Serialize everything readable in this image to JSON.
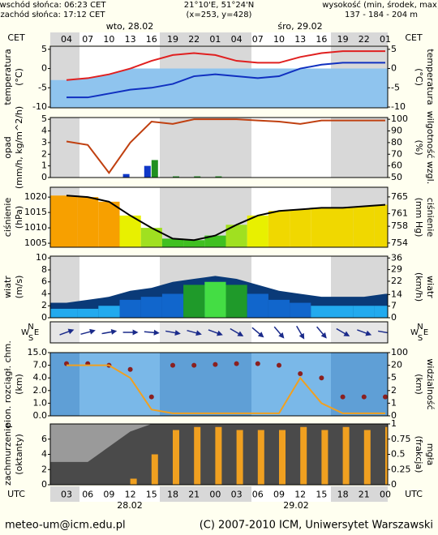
{
  "header": {
    "sunrise": "wschód słońca: 06:23 CET",
    "sunset": "zachód słońca: 17:12 CET",
    "coords": "21°10'E, 51°24'N",
    "grid": "(x=253, y=428)",
    "height_title": "wysokość (min, środek, max)",
    "height_values": "137 - 184 - 204 m",
    "day1": "wto, 28.02",
    "day2": "śro, 29.02",
    "cet_left": "CET",
    "cet_right": "CET",
    "utc_left": "UTC",
    "utc_right": "UTC",
    "date1": "28.02",
    "date2": "29.02"
  },
  "time_axis": {
    "cet": [
      "04",
      "07",
      "10",
      "13",
      "16",
      "19",
      "22",
      "01",
      "04",
      "07",
      "10",
      "13",
      "16",
      "19",
      "22",
      "01"
    ],
    "utc": [
      "03",
      "06",
      "09",
      "12",
      "15",
      "18",
      "21",
      "00",
      "03",
      "06",
      "09",
      "12",
      "15",
      "18",
      "21",
      "00"
    ]
  },
  "chart_data": [
    {
      "type": "line",
      "ylabel": [
        "temperatura",
        "(°C)"
      ],
      "y2label": [
        "temperatura",
        "(°C)"
      ],
      "ylim": [
        -10.2,
        5.8
      ],
      "yticks": [
        -10,
        -5,
        0,
        5
      ],
      "y2lim": [
        -10.2,
        5.8
      ],
      "y2ticks": [
        -10,
        -5,
        0,
        5
      ],
      "series": [
        {
          "kind": "line",
          "color": "#e02020",
          "values": [
            -3,
            -2.5,
            -1.5,
            0,
            2,
            3.5,
            4,
            3.5,
            2,
            1.5,
            1.5,
            3,
            4,
            4.5,
            4.5,
            4.5
          ]
        },
        {
          "kind": "line",
          "color": "#1030c0",
          "values": [
            -7.5,
            -7.5,
            -6.5,
            -5.5,
            -5,
            -4,
            -2,
            -1.5,
            -2,
            -2.5,
            -2,
            0,
            1,
            1.5,
            1.5,
            1.5
          ]
        }
      ]
    },
    {
      "type": "bar",
      "ylabel": [
        "opad",
        "(mm/h, kg/m^2/h)"
      ],
      "y2label": [
        "wilgotność wzgl.",
        "(%)"
      ],
      "ylim": [
        0,
        5.15
      ],
      "yticks": [
        0,
        1,
        2,
        3,
        4,
        5
      ],
      "y2lim": [
        50,
        101.5
      ],
      "y2ticks": [
        50,
        60,
        70,
        80,
        90,
        100
      ],
      "series": [
        {
          "kind": "bars",
          "color": "#1038c8",
          "values": [
            0,
            0,
            0,
            0.3,
            1,
            0,
            0,
            0,
            0,
            0,
            0,
            0,
            0,
            0,
            0,
            0
          ]
        },
        {
          "kind": "bars",
          "color": "#209020",
          "values": [
            0,
            0,
            0,
            0,
            1.5,
            0.1,
            0.1,
            0.1,
            0,
            0,
            0,
            0,
            0,
            0,
            0,
            0
          ]
        },
        {
          "kind": "line",
          "axis": "y2",
          "color": "#c04010",
          "values": [
            81,
            78,
            54,
            80,
            98,
            96,
            100,
            100,
            100,
            99,
            98,
            96,
            99,
            99,
            99,
            99
          ]
        }
      ]
    },
    {
      "type": "area",
      "ylabel": [
        "ciśnienie",
        "(hPa)"
      ],
      "y2label": [
        "ciśnienie",
        "(mm Hg)"
      ],
      "ylim": [
        1003.7,
        1023.2
      ],
      "yticks": [
        1005,
        1010,
        1015,
        1020
      ],
      "y2lim": [
        753,
        767.3
      ],
      "y2ticks": [
        754,
        758,
        761,
        765
      ],
      "series": [
        {
          "kind": "columns",
          "color": "#000000",
          "values": [
            1020.5,
            1020,
            1018.5,
            1014,
            1010,
            1006.5,
            1006,
            1007.5,
            1011,
            1014,
            1015.5,
            1016,
            1016.5,
            1016.5,
            1017,
            1017.5
          ]
        }
      ]
    },
    {
      "type": "area",
      "ylabel": [
        "wiatr",
        "(m/s)"
      ],
      "y2label": [
        "wiatr",
        "(km/h)"
      ],
      "ylim": [
        0,
        10.3
      ],
      "yticks": [
        0,
        2,
        4,
        6,
        8,
        10
      ],
      "y2lim": [
        0,
        37.1
      ],
      "y2ticks": [
        0,
        7,
        14,
        22,
        29,
        36
      ],
      "series": [
        {
          "kind": "area",
          "color": "#0a3a78",
          "values": [
            2.5,
            3,
            3.5,
            4.5,
            5,
            6,
            6.5,
            7,
            6.5,
            5.5,
            4.5,
            4,
            3.5,
            3.5,
            3.5,
            4
          ]
        },
        {
          "kind": "columns",
          "color": "#1166cc",
          "values": [
            1.5,
            1.5,
            2,
            3,
            3.5,
            4,
            5.5,
            6,
            5.5,
            4,
            3,
            2.5,
            2,
            2,
            2,
            2
          ]
        }
      ]
    },
    {
      "type": "vector",
      "compass": [
        "N",
        "E",
        "S",
        "W"
      ],
      "series": [
        {
          "kind": "arrows",
          "color": "#1a2a8a",
          "values": [
            250,
            255,
            260,
            270,
            275,
            280,
            285,
            290,
            300,
            310,
            320,
            330,
            320,
            300,
            290,
            280
          ]
        }
      ]
    },
    {
      "type": "scatter",
      "scale": "piecewise",
      "ylabel": [
        "pion. rozciągł. chm.",
        "(km)"
      ],
      "y2label": [
        "widzialność",
        "(km)"
      ],
      "ylim": [
        0,
        15
      ],
      "yticks": [
        {
          "value": 0,
          "label": "0.0"
        },
        {
          "value": 1,
          "label": "1.0"
        },
        {
          "value": 2,
          "label": "2.0"
        },
        {
          "value": 4,
          "label": "4.0"
        },
        {
          "value": 7,
          "label": "7.0"
        },
        {
          "value": 15,
          "label": "15.0"
        }
      ],
      "y2lim": [
        0,
        100
      ],
      "y2ticks": [
        0,
        1,
        2,
        5,
        20,
        100
      ],
      "series": [
        {
          "kind": "dots",
          "color": "#8a2020",
          "values": [
            8,
            8,
            7,
            6,
            1.5,
            7,
            7,
            7.5,
            8,
            8,
            7,
            5,
            4,
            1.5,
            1.5,
            1.5
          ]
        },
        {
          "kind": "line",
          "axis": "y2",
          "color": "#f0a020",
          "values": [
            20,
            20,
            20,
            5,
            0.5,
            0.2,
            0.2,
            0.2,
            0.2,
            0.2,
            0.2,
            5,
            1,
            0.2,
            0.2,
            0.2
          ]
        }
      ]
    },
    {
      "type": "bar",
      "ylabel": [
        "zachmurzenie",
        "(oktanty)"
      ],
      "y2label": [
        "mgła",
        "(frakcja)"
      ],
      "ylim": [
        0,
        8
      ],
      "yticks": [
        0,
        2,
        4,
        6
      ],
      "y2lim": [
        0,
        1
      ],
      "y2ticks": [
        0,
        0.25,
        0.5,
        0.75,
        1
      ],
      "series": [
        {
          "kind": "area",
          "color": "#4a4a4a",
          "values": [
            3,
            3,
            5,
            7,
            8,
            8,
            8,
            8,
            8,
            8,
            8,
            8,
            8,
            8,
            8,
            8
          ]
        },
        {
          "kind": "bars",
          "axis": "y2",
          "color": "#f0a020",
          "values": [
            0,
            0,
            0,
            0.1,
            0.5,
            0.9,
            0.95,
            0.95,
            0.9,
            0.9,
            0.9,
            0.95,
            0.9,
            0.95,
            0.9,
            0.95
          ]
        }
      ]
    }
  ],
  "footer": {
    "email": "meteo-um@icm.edu.pl",
    "copyright": "(C) 2007-2010 ICM, Uniwersytet Warszawski"
  }
}
